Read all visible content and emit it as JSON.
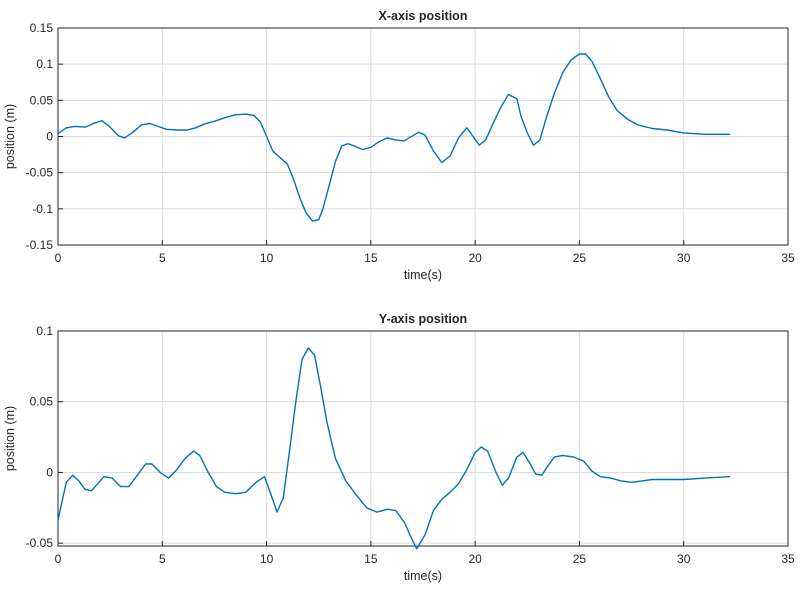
{
  "chart_data": [
    {
      "type": "line",
      "title": "X-axis position",
      "xlabel": "time(s)",
      "ylabel": "position (m)",
      "xlim": [
        0,
        35
      ],
      "ylim": [
        -0.15,
        0.15
      ],
      "xticks": [
        0,
        5,
        10,
        15,
        20,
        25,
        30,
        35
      ],
      "yticks": [
        0.15,
        0.1,
        0.05,
        0,
        -0.05,
        -0.1,
        -0.15
      ],
      "xtick_labels": [
        "0",
        "5",
        "10",
        "15",
        "20",
        "25",
        "30",
        "35"
      ],
      "ytick_labels": [
        "0.15",
        "0.1",
        "0.05",
        "0",
        "-0.05",
        "-0.1",
        "-0.15"
      ],
      "grid": true,
      "line_color": "#0072bd",
      "series": [
        {
          "x": [
            0,
            0.4,
            0.8,
            1.3,
            1.7,
            2.1,
            2.5,
            2.9,
            3.2,
            3.6,
            4.0,
            4.4,
            4.8,
            5.2,
            5.7,
            6.2,
            6.6,
            7.0,
            7.5,
            8.0,
            8.5,
            9.0,
            9.4,
            9.7,
            10.0,
            10.3,
            10.6,
            11.0,
            11.3,
            11.6,
            11.9,
            12.2,
            12.5,
            12.7,
            13.0,
            13.3,
            13.6,
            13.9,
            14.2,
            14.6,
            15.0,
            15.4,
            15.8,
            16.2,
            16.6,
            17.0,
            17.3,
            17.6,
            18.0,
            18.4,
            18.8,
            19.2,
            19.6,
            19.9,
            20.2,
            20.5,
            20.8,
            21.2,
            21.6,
            22.0,
            22.2,
            22.5,
            22.8,
            23.1,
            23.4,
            23.8,
            24.2,
            24.6,
            25.0,
            25.3,
            25.6,
            26.0,
            26.4,
            26.8,
            27.3,
            27.8,
            28.5,
            29.2,
            30.0,
            31.0,
            32.2
          ],
          "y": [
            0.004,
            0.012,
            0.014,
            0.013,
            0.018,
            0.022,
            0.013,
            0.001,
            -0.002,
            0.006,
            0.016,
            0.018,
            0.014,
            0.01,
            0.009,
            0.009,
            0.012,
            0.017,
            0.021,
            0.026,
            0.03,
            0.031,
            0.029,
            0.02,
            0.0,
            -0.02,
            -0.028,
            -0.038,
            -0.06,
            -0.085,
            -0.106,
            -0.117,
            -0.115,
            -0.1,
            -0.068,
            -0.035,
            -0.013,
            -0.01,
            -0.013,
            -0.018,
            -0.015,
            -0.007,
            -0.002,
            -0.005,
            -0.006,
            0.001,
            0.006,
            0.002,
            -0.02,
            -0.036,
            -0.027,
            -0.002,
            0.012,
            0.0,
            -0.012,
            -0.005,
            0.014,
            0.039,
            0.058,
            0.052,
            0.028,
            0.005,
            -0.012,
            -0.005,
            0.025,
            0.06,
            0.088,
            0.106,
            0.114,
            0.114,
            0.104,
            0.08,
            0.055,
            0.036,
            0.024,
            0.016,
            0.011,
            0.009,
            0.005,
            0.003,
            0.003
          ]
        }
      ]
    },
    {
      "type": "line",
      "title": "Y-axis position",
      "xlabel": "time(s)",
      "ylabel": "position (m)",
      "xlim": [
        0,
        35
      ],
      "ylim": [
        -0.052,
        0.1
      ],
      "xticks": [
        0,
        5,
        10,
        15,
        20,
        25,
        30,
        35
      ],
      "yticks": [
        0.1,
        0.05,
        0,
        -0.05
      ],
      "xtick_labels": [
        "0",
        "5",
        "10",
        "15",
        "20",
        "25",
        "30",
        "35"
      ],
      "ytick_labels": [
        "0.1",
        "0.05",
        "0",
        "-0.05"
      ],
      "grid": true,
      "line_color": "#0072bd",
      "series": [
        {
          "x": [
            0,
            0.2,
            0.4,
            0.7,
            1.0,
            1.3,
            1.6,
            1.9,
            2.2,
            2.6,
            3.0,
            3.4,
            3.8,
            4.2,
            4.5,
            4.9,
            5.3,
            5.7,
            6.1,
            6.5,
            6.8,
            7.2,
            7.6,
            8.0,
            8.5,
            9.0,
            9.5,
            9.9,
            10.2,
            10.5,
            10.8,
            11.1,
            11.4,
            11.7,
            12.0,
            12.3,
            12.6,
            12.9,
            13.3,
            13.8,
            14.3,
            14.8,
            15.3,
            15.8,
            16.2,
            16.6,
            16.9,
            17.2,
            17.6,
            18.0,
            18.4,
            18.8,
            19.2,
            19.6,
            20.0,
            20.3,
            20.6,
            21.0,
            21.3,
            21.6,
            22.0,
            22.3,
            22.6,
            22.9,
            23.2,
            23.5,
            23.8,
            24.2,
            24.7,
            25.2,
            25.6,
            26.0,
            26.5,
            27.0,
            27.5,
            28.0,
            28.5,
            29.0,
            30.0,
            31.0,
            32.2
          ],
          "y": [
            -0.034,
            -0.02,
            -0.007,
            -0.002,
            -0.006,
            -0.012,
            -0.013,
            -0.008,
            -0.003,
            -0.004,
            -0.01,
            -0.01,
            -0.002,
            0.006,
            0.006,
            0.0,
            -0.004,
            0.002,
            0.01,
            0.015,
            0.012,
            0.0,
            -0.01,
            -0.014,
            -0.015,
            -0.014,
            -0.007,
            -0.003,
            -0.015,
            -0.028,
            -0.018,
            0.015,
            0.05,
            0.08,
            0.088,
            0.083,
            0.06,
            0.035,
            0.01,
            -0.006,
            -0.016,
            -0.025,
            -0.028,
            -0.026,
            -0.027,
            -0.035,
            -0.045,
            -0.054,
            -0.044,
            -0.027,
            -0.019,
            -0.014,
            -0.008,
            0.002,
            0.014,
            0.018,
            0.015,
            0.0,
            -0.009,
            -0.004,
            0.011,
            0.014,
            0.007,
            -0.001,
            -0.002,
            0.005,
            0.011,
            0.012,
            0.011,
            0.008,
            0.001,
            -0.003,
            -0.004,
            -0.006,
            -0.007,
            -0.006,
            -0.005,
            -0.005,
            -0.005,
            -0.004,
            -0.003
          ]
        }
      ]
    }
  ]
}
